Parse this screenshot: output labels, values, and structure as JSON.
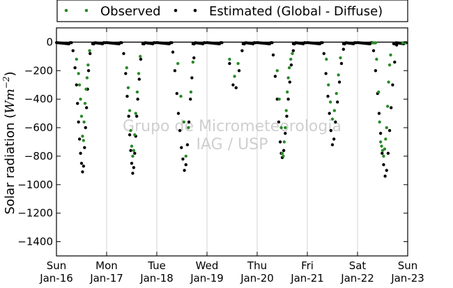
{
  "chart_data": {
    "type": "scatter",
    "ylabel": "Solar radiation (",
    "ylabel_unit": "Wm",
    "ylabel_exp": "−2",
    "ylabel_close": ")",
    "ylim": [
      -1500,
      100
    ],
    "yticks": [
      0,
      -200,
      -400,
      -600,
      -800,
      -1000,
      -1200,
      -1400
    ],
    "ytick_labels": [
      "0",
      "−200",
      "−400",
      "−600",
      "−800",
      "−1000",
      "−1200",
      "−1400"
    ],
    "xlim": [
      "2011-01-16",
      "2011-01-23"
    ],
    "xticks": [
      {
        "day": "Sun",
        "date": "Jan-16"
      },
      {
        "day": "Mon",
        "date": "Jan-17"
      },
      {
        "day": "Tue",
        "date": "Jan-18"
      },
      {
        "day": "Wed",
        "date": "Jan-19"
      },
      {
        "day": "Thu",
        "date": "Jan-20"
      },
      {
        "day": "Fri",
        "date": "Jan-21"
      },
      {
        "day": "Sat",
        "date": "Jan-22"
      },
      {
        "day": "Sun",
        "date": "Jan-23"
      }
    ],
    "grid": "vertical",
    "legend_position": "top",
    "watermark": [
      "Grupo de Micrometeorologia",
      "IAG / USP"
    ],
    "series": [
      {
        "name": "Observed",
        "color": "#2a8a2a",
        "values": [
          [
            0.4,
            -120
          ],
          [
            0.44,
            -220
          ],
          [
            0.46,
            -300
          ],
          [
            0.48,
            -400
          ],
          [
            0.5,
            -520
          ],
          [
            0.52,
            -660
          ],
          [
            0.54,
            -690
          ],
          [
            0.55,
            -560
          ],
          [
            0.57,
            -430
          ],
          [
            0.59,
            -330
          ],
          [
            0.61,
            -250
          ],
          [
            0.63,
            -160
          ],
          [
            0.66,
            -60
          ],
          [
            1.4,
            -180
          ],
          [
            1.43,
            -320
          ],
          [
            1.46,
            -480
          ],
          [
            1.48,
            -620
          ],
          [
            1.5,
            -730
          ],
          [
            1.52,
            -800
          ],
          [
            1.54,
            -760
          ],
          [
            1.56,
            -650
          ],
          [
            1.58,
            -500
          ],
          [
            1.61,
            -350
          ],
          [
            1.64,
            -220
          ],
          [
            1.67,
            -100
          ],
          [
            2.42,
            -150
          ],
          [
            2.48,
            -380
          ],
          [
            2.54,
            -560
          ],
          [
            2.58,
            -800
          ],
          [
            2.63,
            -600
          ],
          [
            2.68,
            -350
          ],
          [
            2.72,
            -140
          ],
          [
            3.45,
            -120
          ],
          [
            3.55,
            -240
          ],
          [
            3.62,
            -150
          ],
          [
            4.4,
            -200
          ],
          [
            4.44,
            -400
          ],
          [
            4.48,
            -600
          ],
          [
            4.5,
            -780
          ],
          [
            4.52,
            -800
          ],
          [
            4.54,
            -700
          ],
          [
            4.56,
            -600
          ],
          [
            4.58,
            -480
          ],
          [
            4.6,
            -350
          ],
          [
            4.62,
            -250
          ],
          [
            4.64,
            -180
          ],
          [
            4.67,
            -120
          ],
          [
            4.7,
            -80
          ],
          [
            5.38,
            -120
          ],
          [
            5.42,
            -300
          ],
          [
            5.46,
            -420
          ],
          [
            5.5,
            -540
          ],
          [
            5.54,
            -480
          ],
          [
            5.58,
            -360
          ],
          [
            5.62,
            -230
          ],
          [
            5.66,
            -110
          ],
          [
            6.3,
            -5
          ],
          [
            6.33,
            -5
          ],
          [
            6.36,
            -5
          ],
          [
            6.38,
            -120
          ],
          [
            6.42,
            -350
          ],
          [
            6.44,
            -560
          ],
          [
            6.46,
            -700
          ],
          [
            6.48,
            -730
          ],
          [
            6.5,
            -760
          ],
          [
            6.52,
            -800
          ],
          [
            6.54,
            -750
          ],
          [
            6.56,
            -680
          ],
          [
            6.58,
            -600
          ],
          [
            6.6,
            -450
          ],
          [
            6.62,
            -280
          ],
          [
            6.64,
            -160
          ],
          [
            6.66,
            -90
          ],
          [
            6.9,
            -5
          ],
          [
            6.95,
            -5
          ]
        ]
      },
      {
        "name": "Estimated (Global - Diffuse)",
        "color": "#000000",
        "values": [
          [
            0.33,
            -60
          ],
          [
            0.37,
            -180
          ],
          [
            0.4,
            -300
          ],
          [
            0.42,
            -430
          ],
          [
            0.44,
            -560
          ],
          [
            0.46,
            -680
          ],
          [
            0.48,
            -780
          ],
          [
            0.5,
            -850
          ],
          [
            0.52,
            -910
          ],
          [
            0.54,
            -870
          ],
          [
            0.56,
            -740
          ],
          [
            0.58,
            -600
          ],
          [
            0.6,
            -460
          ],
          [
            0.62,
            -330
          ],
          [
            0.64,
            -200
          ],
          [
            0.67,
            -80
          ],
          [
            1.34,
            -80
          ],
          [
            1.38,
            -220
          ],
          [
            1.41,
            -380
          ],
          [
            1.44,
            -520
          ],
          [
            1.46,
            -650
          ],
          [
            1.48,
            -760
          ],
          [
            1.5,
            -850
          ],
          [
            1.52,
            -920
          ],
          [
            1.54,
            -880
          ],
          [
            1.56,
            -780
          ],
          [
            1.58,
            -660
          ],
          [
            1.6,
            -520
          ],
          [
            1.62,
            -400
          ],
          [
            1.65,
            -260
          ],
          [
            1.68,
            -120
          ],
          [
            2.32,
            -70
          ],
          [
            2.36,
            -200
          ],
          [
            2.4,
            -360
          ],
          [
            2.43,
            -500
          ],
          [
            2.46,
            -620
          ],
          [
            2.49,
            -740
          ],
          [
            2.52,
            -820
          ],
          [
            2.55,
            -900
          ],
          [
            2.58,
            -860
          ],
          [
            2.61,
            -720
          ],
          [
            2.64,
            -560
          ],
          [
            2.67,
            -400
          ],
          [
            2.7,
            -250
          ],
          [
            2.74,
            -110
          ],
          [
            3.45,
            -150
          ],
          [
            3.52,
            -300
          ],
          [
            3.58,
            -320
          ],
          [
            3.64,
            -200
          ],
          [
            3.7,
            -60
          ],
          [
            4.32,
            -90
          ],
          [
            4.36,
            -240
          ],
          [
            4.4,
            -400
          ],
          [
            4.43,
            -560
          ],
          [
            4.46,
            -700
          ],
          [
            4.48,
            -780
          ],
          [
            4.5,
            -810
          ],
          [
            4.53,
            -760
          ],
          [
            4.56,
            -640
          ],
          [
            4.59,
            -520
          ],
          [
            4.62,
            -400
          ],
          [
            4.65,
            -280
          ],
          [
            4.68,
            -160
          ],
          [
            4.72,
            -60
          ],
          [
            5.33,
            -80
          ],
          [
            5.37,
            -220
          ],
          [
            5.41,
            -380
          ],
          [
            5.44,
            -500
          ],
          [
            5.47,
            -620
          ],
          [
            5.5,
            -720
          ],
          [
            5.53,
            -680
          ],
          [
            5.56,
            -560
          ],
          [
            5.6,
            -420
          ],
          [
            5.64,
            -280
          ],
          [
            5.68,
            -150
          ],
          [
            5.72,
            -50
          ],
          [
            6.32,
            -60
          ],
          [
            6.36,
            -200
          ],
          [
            6.4,
            -360
          ],
          [
            6.43,
            -500
          ],
          [
            6.46,
            -640
          ],
          [
            6.49,
            -780
          ],
          [
            6.52,
            -860
          ],
          [
            6.55,
            -940
          ],
          [
            6.58,
            -900
          ],
          [
            6.61,
            -780
          ],
          [
            6.64,
            -620
          ],
          [
            6.67,
            -460
          ],
          [
            6.7,
            -300
          ],
          [
            6.74,
            -140
          ],
          [
            6.78,
            -20
          ]
        ]
      }
    ]
  }
}
